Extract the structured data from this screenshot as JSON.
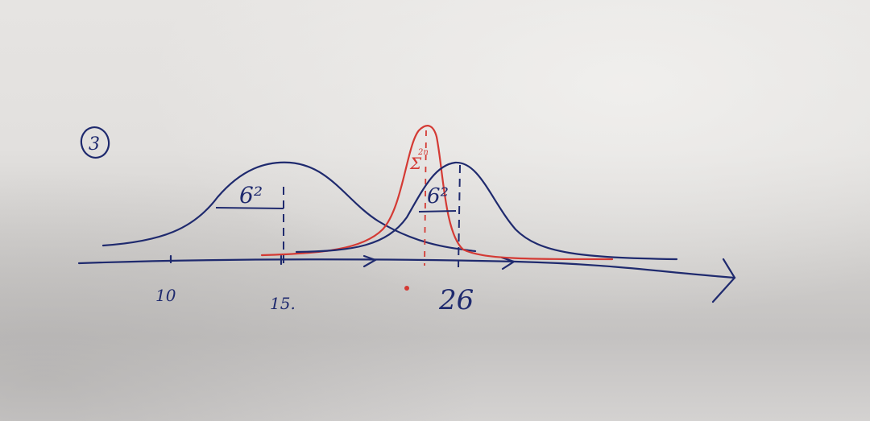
{
  "photo": {
    "subject": "handwritten sketch on paper",
    "ink_colors": {
      "blue": "#1f2a6e",
      "red": "#d43a34"
    }
  },
  "sketch": {
    "circled_number": "3",
    "labels": {
      "tick_10": "10",
      "tick_15": "15.",
      "tick_26": "26",
      "sigma_left": "6²",
      "sigma_right": "6²",
      "sigma_red": "Σ"
    }
  }
}
